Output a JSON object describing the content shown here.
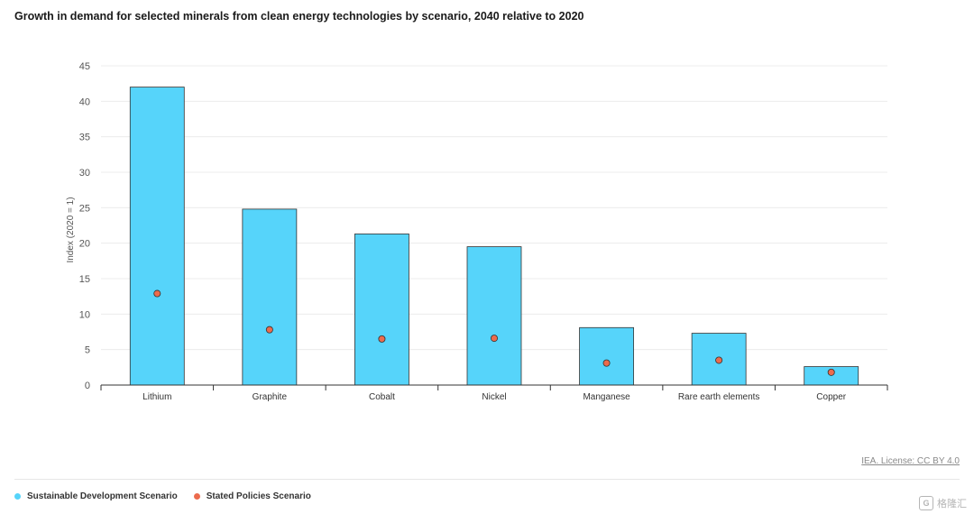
{
  "header": {
    "title": "Growth in demand for selected minerals from clean energy technologies by scenario, 2040 relative to 2020"
  },
  "footer": {
    "license": "IEA. License: CC BY 4.0"
  },
  "legend": {
    "items": [
      {
        "label": "Sustainable Development Scenario",
        "color": "#56d4fa"
      },
      {
        "label": "Stated Policies Scenario",
        "color": "#ec6b4d"
      }
    ]
  },
  "watermark": {
    "icon": "G",
    "text": "格隆汇"
  },
  "colors": {
    "bar_fill": "#56d4fa",
    "bar_stroke": "#333333",
    "dot_fill": "#ec6b4d",
    "grid": "#ececec",
    "axis": "#333333",
    "tick_text": "#555555"
  },
  "chart_data": {
    "type": "bar",
    "title": "Growth in demand for selected minerals from clean energy technologies by scenario, 2040 relative to 2020",
    "xlabel": "",
    "ylabel": "Index (2020 = 1)",
    "categories": [
      "Lithium",
      "Graphite",
      "Cobalt",
      "Nickel",
      "Manganese",
      "Rare earth elements",
      "Copper"
    ],
    "series": [
      {
        "name": "Sustainable Development Scenario",
        "type": "bar",
        "values": [
          42,
          24.8,
          21.3,
          19.5,
          8.1,
          7.3,
          2.6
        ]
      },
      {
        "name": "Stated Policies Scenario",
        "type": "scatter",
        "values": [
          12.9,
          7.8,
          6.5,
          6.6,
          3.1,
          3.5,
          1.8
        ]
      }
    ],
    "ylim": [
      0,
      45
    ],
    "yticks": [
      0,
      5,
      10,
      15,
      20,
      25,
      30,
      35,
      40,
      45
    ],
    "grid": true,
    "legend_position": "bottom-left"
  }
}
